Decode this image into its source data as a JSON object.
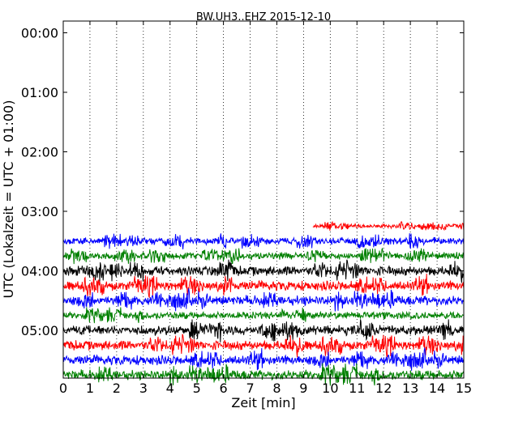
{
  "chart_data": {
    "type": "line",
    "title": "BW.UH3..EHZ 2015-12-10",
    "xlabel": "Zeit  [min]",
    "ylabel": "UTC (Lokalzeit = UTC + 01:00)",
    "xlim": [
      0,
      15
    ],
    "ylim_hours": [
      0,
      6
    ],
    "x_ticks": [
      "0",
      "1",
      "2",
      "3",
      "4",
      "5",
      "6",
      "7",
      "8",
      "9",
      "10",
      "11",
      "12",
      "13",
      "14",
      "15"
    ],
    "y_ticks": [
      "00:00",
      "01:00",
      "02:00",
      "03:00",
      "04:00",
      "05:00"
    ],
    "grid": "vertical-dotted",
    "color_cycle": [
      "#ff0000",
      "#0000ff",
      "#008000",
      "#000000"
    ],
    "traces": [
      {
        "hour": 3.25,
        "color": "#ff0000",
        "x_start": 9.35,
        "x_end": 15,
        "amplitude": "low"
      },
      {
        "hour": 3.5,
        "color": "#0000ff",
        "x_start": 0,
        "x_end": 15,
        "amplitude": "medium"
      },
      {
        "hour": 3.75,
        "color": "#008000",
        "x_start": 0,
        "x_end": 15,
        "amplitude": "medium"
      },
      {
        "hour": 4.0,
        "color": "#000000",
        "x_start": 0,
        "x_end": 15,
        "amplitude": "high"
      },
      {
        "hour": 4.25,
        "color": "#ff0000",
        "x_start": 0,
        "x_end": 15,
        "amplitude": "high"
      },
      {
        "hour": 4.5,
        "color": "#0000ff",
        "x_start": 0,
        "x_end": 15,
        "amplitude": "high"
      },
      {
        "hour": 4.75,
        "color": "#008000",
        "x_start": 0,
        "x_end": 15,
        "amplitude": "medium"
      },
      {
        "hour": 5.0,
        "color": "#000000",
        "x_start": 0,
        "x_end": 15,
        "amplitude": "high"
      },
      {
        "hour": 5.25,
        "color": "#ff0000",
        "x_start": 0,
        "x_end": 15,
        "amplitude": "high"
      },
      {
        "hour": 5.5,
        "color": "#0000ff",
        "x_start": 0,
        "x_end": 15,
        "amplitude": "high"
      },
      {
        "hour": 5.75,
        "color": "#008000",
        "x_start": 0,
        "x_end": 15,
        "amplitude": "high"
      }
    ]
  }
}
